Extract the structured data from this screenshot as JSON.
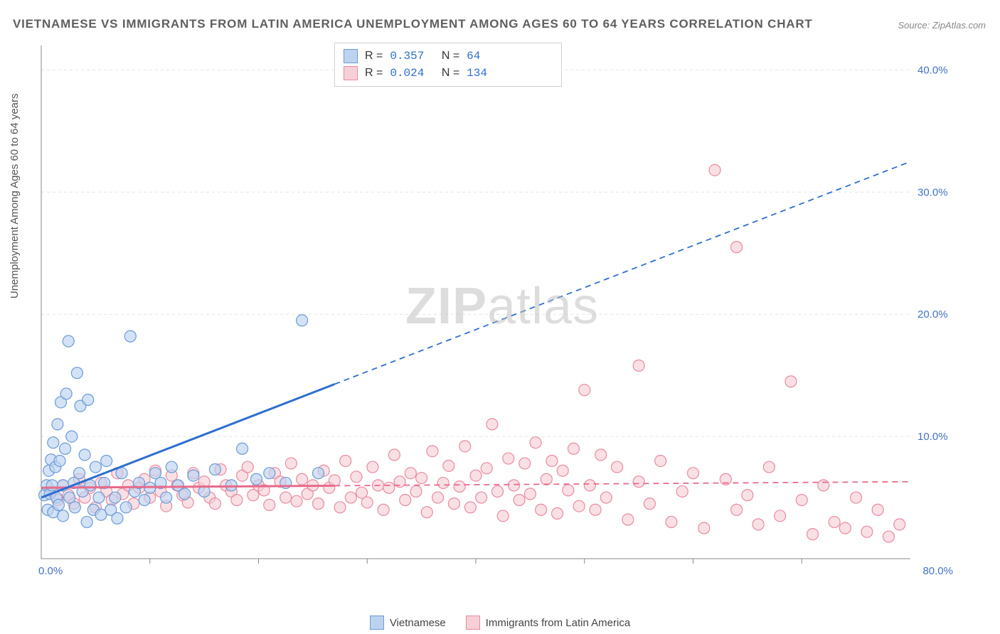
{
  "title": "VIETNAMESE VS IMMIGRANTS FROM LATIN AMERICA UNEMPLOYMENT AMONG AGES 60 TO 64 YEARS CORRELATION CHART",
  "source_label": "Source: ZipAtlas.com",
  "y_axis_label": "Unemployment Among Ages 60 to 64 years",
  "watermark_a": "ZIP",
  "watermark_b": "atlas",
  "chart": {
    "type": "scatter",
    "background_color": "#ffffff",
    "grid_color": "#e4e4e4",
    "axis_line_color": "#888888",
    "tick_label_color": "#4472c4",
    "xlim": [
      0,
      80
    ],
    "ylim": [
      0,
      42
    ],
    "x_ticks": [
      0,
      80
    ],
    "x_tick_labels": [
      "0.0%",
      "80.0%"
    ],
    "y_ticks": [
      10,
      20,
      30,
      40
    ],
    "y_tick_labels": [
      "10.0%",
      "20.0%",
      "30.0%",
      "40.0%"
    ],
    "x_intermediate_ticks": [
      10,
      20,
      30,
      40,
      50,
      60,
      70
    ],
    "marker_radius": 8,
    "marker_stroke_width": 1.2,
    "trend_line_width": 3,
    "trend_dash": "8,6",
    "trend_solid_xmax": 27,
    "series": [
      {
        "key": "vietnamese",
        "label": "Vietnamese",
        "fill": "#bcd3ef",
        "stroke": "#6a9bd8",
        "line_color": "#2e6fd0",
        "R": "0.357",
        "N": "64",
        "trend": {
          "x1": 0,
          "y1": 5.0,
          "x2": 80,
          "y2": 32.5
        },
        "points": [
          [
            0.3,
            5.2
          ],
          [
            0.5,
            6.0
          ],
          [
            0.6,
            4.0
          ],
          [
            0.7,
            7.2
          ],
          [
            0.8,
            5.3
          ],
          [
            0.9,
            8.1
          ],
          [
            1.0,
            6.0
          ],
          [
            1.1,
            3.8
          ],
          [
            1.1,
            9.5
          ],
          [
            1.3,
            7.5
          ],
          [
            1.4,
            5.0
          ],
          [
            1.5,
            11.0
          ],
          [
            1.6,
            4.4
          ],
          [
            1.7,
            8.0
          ],
          [
            1.8,
            12.8
          ],
          [
            2.0,
            6.0
          ],
          [
            2.0,
            3.5
          ],
          [
            2.2,
            9.0
          ],
          [
            2.3,
            13.5
          ],
          [
            2.5,
            17.8
          ],
          [
            2.6,
            5.0
          ],
          [
            2.8,
            10.0
          ],
          [
            3.0,
            6.2
          ],
          [
            3.1,
            4.2
          ],
          [
            3.3,
            15.2
          ],
          [
            3.5,
            7.0
          ],
          [
            3.6,
            12.5
          ],
          [
            3.8,
            5.5
          ],
          [
            4.0,
            8.5
          ],
          [
            4.2,
            3.0
          ],
          [
            4.3,
            13.0
          ],
          [
            4.5,
            6.0
          ],
          [
            4.8,
            4.0
          ],
          [
            5.0,
            7.5
          ],
          [
            5.3,
            5.0
          ],
          [
            5.5,
            3.6
          ],
          [
            5.8,
            6.2
          ],
          [
            6.0,
            8.0
          ],
          [
            6.4,
            4.0
          ],
          [
            6.8,
            5.0
          ],
          [
            7.0,
            3.3
          ],
          [
            7.4,
            7.0
          ],
          [
            7.8,
            4.2
          ],
          [
            8.2,
            18.2
          ],
          [
            8.6,
            5.5
          ],
          [
            9.0,
            6.2
          ],
          [
            9.5,
            4.8
          ],
          [
            10.0,
            5.8
          ],
          [
            10.5,
            7.0
          ],
          [
            11.0,
            6.2
          ],
          [
            11.5,
            5.0
          ],
          [
            12.0,
            7.5
          ],
          [
            12.6,
            6.0
          ],
          [
            13.2,
            5.3
          ],
          [
            14.0,
            6.8
          ],
          [
            15.0,
            5.5
          ],
          [
            16.0,
            7.3
          ],
          [
            17.5,
            6.0
          ],
          [
            18.5,
            9.0
          ],
          [
            19.8,
            6.5
          ],
          [
            21.0,
            7.0
          ],
          [
            22.5,
            6.2
          ],
          [
            24.0,
            19.5
          ],
          [
            25.5,
            7.0
          ]
        ]
      },
      {
        "key": "latin",
        "label": "Immigrants from Latin America",
        "fill": "#f6cfd7",
        "stroke": "#e98ba0",
        "line_color": "#e76b8a",
        "R": "0.024",
        "N": "134",
        "trend": {
          "x1": 0,
          "y1": 5.8,
          "x2": 80,
          "y2": 6.3
        },
        "points": [
          [
            1.0,
            5.5
          ],
          [
            1.5,
            4.8
          ],
          [
            2.0,
            6.0
          ],
          [
            2.5,
            5.2
          ],
          [
            3.0,
            4.5
          ],
          [
            3.5,
            6.5
          ],
          [
            4.0,
            5.0
          ],
          [
            4.5,
            5.8
          ],
          [
            5.0,
            4.2
          ],
          [
            5.5,
            6.2
          ],
          [
            6.0,
            5.5
          ],
          [
            6.5,
            4.8
          ],
          [
            7.0,
            7.0
          ],
          [
            7.5,
            5.3
          ],
          [
            8.0,
            6.0
          ],
          [
            8.5,
            4.5
          ],
          [
            9.0,
            5.8
          ],
          [
            9.5,
            6.5
          ],
          [
            10.0,
            5.0
          ],
          [
            10.5,
            7.2
          ],
          [
            11.0,
            5.5
          ],
          [
            11.5,
            4.3
          ],
          [
            12.0,
            6.8
          ],
          [
            12.5,
            6.0
          ],
          [
            13.0,
            5.2
          ],
          [
            13.5,
            4.6
          ],
          [
            14.0,
            7.0
          ],
          [
            14.5,
            5.8
          ],
          [
            15.0,
            6.3
          ],
          [
            15.5,
            5.0
          ],
          [
            16.0,
            4.5
          ],
          [
            16.5,
            7.3
          ],
          [
            17.0,
            6.0
          ],
          [
            17.5,
            5.5
          ],
          [
            18.0,
            4.8
          ],
          [
            18.5,
            6.8
          ],
          [
            19.0,
            7.5
          ],
          [
            19.5,
            5.2
          ],
          [
            20.0,
            6.0
          ],
          [
            20.5,
            5.6
          ],
          [
            21.0,
            4.4
          ],
          [
            21.5,
            7.0
          ],
          [
            22.0,
            6.3
          ],
          [
            22.5,
            5.0
          ],
          [
            23.0,
            7.8
          ],
          [
            23.5,
            4.7
          ],
          [
            24.0,
            6.5
          ],
          [
            24.5,
            5.3
          ],
          [
            25.0,
            6.0
          ],
          [
            25.5,
            4.5
          ],
          [
            26.0,
            7.2
          ],
          [
            26.5,
            5.8
          ],
          [
            27.0,
            6.4
          ],
          [
            27.5,
            4.2
          ],
          [
            28.0,
            8.0
          ],
          [
            28.5,
            5.0
          ],
          [
            29.0,
            6.7
          ],
          [
            29.5,
            5.4
          ],
          [
            30.0,
            4.6
          ],
          [
            30.5,
            7.5
          ],
          [
            31.0,
            6.0
          ],
          [
            31.5,
            4.0
          ],
          [
            32.0,
            5.8
          ],
          [
            32.5,
            8.5
          ],
          [
            33.0,
            6.3
          ],
          [
            33.5,
            4.8
          ],
          [
            34.0,
            7.0
          ],
          [
            34.5,
            5.5
          ],
          [
            35.0,
            6.6
          ],
          [
            35.5,
            3.8
          ],
          [
            36.0,
            8.8
          ],
          [
            36.5,
            5.0
          ],
          [
            37.0,
            6.2
          ],
          [
            37.5,
            7.6
          ],
          [
            38.0,
            4.5
          ],
          [
            38.5,
            5.9
          ],
          [
            39.0,
            9.2
          ],
          [
            39.5,
            4.2
          ],
          [
            40.0,
            6.8
          ],
          [
            40.5,
            5.0
          ],
          [
            41.0,
            7.4
          ],
          [
            41.5,
            11.0
          ],
          [
            42.0,
            5.5
          ],
          [
            42.5,
            3.5
          ],
          [
            43.0,
            8.2
          ],
          [
            43.5,
            6.0
          ],
          [
            44.0,
            4.8
          ],
          [
            44.5,
            7.8
          ],
          [
            45.0,
            5.3
          ],
          [
            45.5,
            9.5
          ],
          [
            46.0,
            4.0
          ],
          [
            46.5,
            6.5
          ],
          [
            47.0,
            8.0
          ],
          [
            47.5,
            3.7
          ],
          [
            48.0,
            7.2
          ],
          [
            48.5,
            5.6
          ],
          [
            49.0,
            9.0
          ],
          [
            49.5,
            4.3
          ],
          [
            50.0,
            13.8
          ],
          [
            50.5,
            6.0
          ],
          [
            51.0,
            4.0
          ],
          [
            51.5,
            8.5
          ],
          [
            52.0,
            5.0
          ],
          [
            53.0,
            7.5
          ],
          [
            54.0,
            3.2
          ],
          [
            55.0,
            6.3
          ],
          [
            55.0,
            15.8
          ],
          [
            56.0,
            4.5
          ],
          [
            57.0,
            8.0
          ],
          [
            58.0,
            3.0
          ],
          [
            59.0,
            5.5
          ],
          [
            60.0,
            7.0
          ],
          [
            61.0,
            2.5
          ],
          [
            62.0,
            31.8
          ],
          [
            63.0,
            6.5
          ],
          [
            64.0,
            4.0
          ],
          [
            64.0,
            25.5
          ],
          [
            65.0,
            5.2
          ],
          [
            66.0,
            2.8
          ],
          [
            67.0,
            7.5
          ],
          [
            68.0,
            3.5
          ],
          [
            69.0,
            14.5
          ],
          [
            70.0,
            4.8
          ],
          [
            71.0,
            2.0
          ],
          [
            72.0,
            6.0
          ],
          [
            73.0,
            3.0
          ],
          [
            74.0,
            2.5
          ],
          [
            75.0,
            5.0
          ],
          [
            76.0,
            2.2
          ],
          [
            77.0,
            4.0
          ],
          [
            78.0,
            1.8
          ],
          [
            79.0,
            2.8
          ]
        ]
      }
    ]
  },
  "stats_label_R": "R =",
  "stats_label_N": "N ="
}
